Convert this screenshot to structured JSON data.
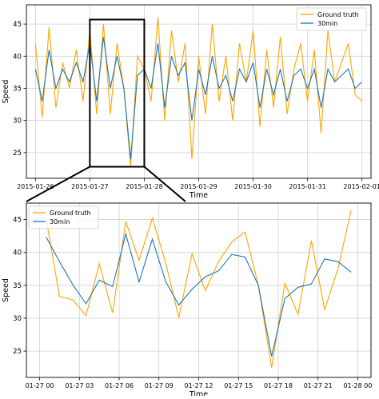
{
  "chart_data": [
    {
      "type": "line",
      "xlabel": "Time",
      "ylabel": "Speed",
      "xlim": [
        "2015-01-25 20:00",
        "2015-02-01 04:00"
      ],
      "ylim": [
        21,
        48
      ],
      "x_ticks": [
        "2015-01-26",
        "2015-01-27",
        "2015-01-28",
        "2015-01-29",
        "2015-01-30",
        "2015-01-31",
        "2015-02-01"
      ],
      "y_ticks": [
        25,
        30,
        35,
        40,
        45
      ],
      "grid": true,
      "legend": "top-right",
      "zoom_box": {
        "x": [
          "2015-01-27 00:00",
          "2015-01-28 00:00"
        ],
        "y": [
          22.8,
          45.7
        ]
      },
      "series": [
        {
          "name": "Ground truth",
          "color": "#FFA500",
          "x": [
            "2015-01-26 00:00",
            "2015-01-26 03:00",
            "2015-01-26 06:00",
            "2015-01-26 09:00",
            "2015-01-26 12:00",
            "2015-01-26 15:00",
            "2015-01-26 18:00",
            "2015-01-26 21:00",
            "2015-01-27 00:00",
            "2015-01-27 03:00",
            "2015-01-27 06:00",
            "2015-01-27 09:00",
            "2015-01-27 12:00",
            "2015-01-27 15:00",
            "2015-01-27 18:00",
            "2015-01-27 21:00",
            "2015-01-28 00:00",
            "2015-01-28 03:00",
            "2015-01-28 06:00",
            "2015-01-28 09:00",
            "2015-01-28 12:00",
            "2015-01-28 15:00",
            "2015-01-28 18:00",
            "2015-01-28 21:00",
            "2015-01-29 00:00",
            "2015-01-29 03:00",
            "2015-01-29 06:00",
            "2015-01-29 09:00",
            "2015-01-29 12:00",
            "2015-01-29 15:00",
            "2015-01-29 18:00",
            "2015-01-29 21:00",
            "2015-01-30 00:00",
            "2015-01-30 03:00",
            "2015-01-30 06:00",
            "2015-01-30 09:00",
            "2015-01-30 12:00",
            "2015-01-30 15:00",
            "2015-01-30 18:00",
            "2015-01-30 21:00",
            "2015-01-31 00:00",
            "2015-01-31 03:00",
            "2015-01-31 06:00",
            "2015-01-31 09:00",
            "2015-01-31 12:00",
            "2015-01-31 15:00",
            "2015-01-31 18:00",
            "2015-01-31 21:00",
            "2015-02-01 00:00"
          ],
          "y": [
            42,
            30.5,
            44.5,
            32,
            39,
            35,
            41,
            33,
            44,
            31,
            45,
            31,
            42,
            35,
            22.8,
            40,
            38,
            33,
            46,
            30,
            44,
            36,
            42,
            24,
            40,
            31,
            45,
            33,
            40,
            30,
            42,
            36,
            44,
            29,
            41,
            32,
            43,
            31,
            38,
            42,
            33,
            41,
            28,
            44,
            36,
            39,
            42,
            34,
            33
          ]
        },
        {
          "name": "30min",
          "color": "#1f77b4",
          "x": [
            "2015-01-26 00:00",
            "2015-01-26 03:00",
            "2015-01-26 06:00",
            "2015-01-26 09:00",
            "2015-01-26 12:00",
            "2015-01-26 15:00",
            "2015-01-26 18:00",
            "2015-01-26 21:00",
            "2015-01-27 00:00",
            "2015-01-27 03:00",
            "2015-01-27 06:00",
            "2015-01-27 09:00",
            "2015-01-27 12:00",
            "2015-01-27 15:00",
            "2015-01-27 18:00",
            "2015-01-27 21:00",
            "2015-01-28 00:00",
            "2015-01-28 03:00",
            "2015-01-28 06:00",
            "2015-01-28 09:00",
            "2015-01-28 12:00",
            "2015-01-28 15:00",
            "2015-01-28 18:00",
            "2015-01-28 21:00",
            "2015-01-29 00:00",
            "2015-01-29 03:00",
            "2015-01-29 06:00",
            "2015-01-29 09:00",
            "2015-01-29 12:00",
            "2015-01-29 15:00",
            "2015-01-29 18:00",
            "2015-01-29 21:00",
            "2015-01-30 00:00",
            "2015-01-30 03:00",
            "2015-01-30 06:00",
            "2015-01-30 09:00",
            "2015-01-30 12:00",
            "2015-01-30 15:00",
            "2015-01-30 18:00",
            "2015-01-30 21:00",
            "2015-01-31 00:00",
            "2015-01-31 03:00",
            "2015-01-31 06:00",
            "2015-01-31 09:00",
            "2015-01-31 12:00",
            "2015-01-31 15:00",
            "2015-01-31 18:00",
            "2015-01-31 21:00",
            "2015-02-01 00:00"
          ],
          "y": [
            38,
            33,
            41,
            35,
            38,
            36,
            39,
            36,
            42,
            33,
            43,
            35,
            40,
            35,
            24,
            37,
            38,
            35,
            42,
            32,
            40,
            37,
            39,
            30,
            38,
            34,
            40,
            35,
            37,
            33,
            38,
            36,
            39,
            32,
            38,
            34,
            38,
            33,
            37,
            38,
            35,
            38,
            32,
            38,
            36,
            37,
            38,
            35,
            36
          ]
        }
      ]
    },
    {
      "type": "line",
      "xlabel": "Time",
      "ylabel": "Speed",
      "xlim": [
        "2015-01-26 23:00",
        "2015-01-28 01:00"
      ],
      "ylim": [
        21,
        47.5
      ],
      "x_ticks": [
        "01-27 00",
        "01-27 03",
        "01-27 06",
        "01-27 09",
        "01-27 12",
        "01-27 15",
        "01-27 18",
        "01-27 21",
        "01-28 00"
      ],
      "y_ticks": [
        25,
        30,
        35,
        40,
        45
      ],
      "grid": true,
      "legend": "top-left",
      "series": [
        {
          "name": "Ground truth",
          "color": "#FFA500",
          "x": [
            0.5,
            1.5,
            2.5,
            3.5,
            4.5,
            5.5,
            6.5,
            7.5,
            8.5,
            9.5,
            10.5,
            11.5,
            12.5,
            13.5,
            14.5,
            15.5,
            16.5,
            17.5,
            18.5,
            19.5,
            20.5,
            21.5,
            22.5,
            23.5
          ],
          "y": [
            45,
            33.3,
            32.8,
            30.4,
            38.3,
            30.8,
            44.7,
            38.8,
            45.2,
            38.5,
            30.1,
            39.8,
            34.2,
            38.6,
            41.6,
            43.1,
            35,
            22.5,
            35.3,
            30.6,
            41.8,
            31.3,
            37.5,
            46.4
          ]
        },
        {
          "name": "30min",
          "color": "#1f77b4",
          "x": [
            0.5,
            1.5,
            2.5,
            3.5,
            4.5,
            5.5,
            6.5,
            7.5,
            8.5,
            9.5,
            10.5,
            11.5,
            12.5,
            13.5,
            14.5,
            15.5,
            16.5,
            17.5,
            18.5,
            19.5,
            20.5,
            21.5,
            22.5,
            23.5
          ],
          "y": [
            42.3,
            38.6,
            35.1,
            32.2,
            35.8,
            34.8,
            42.8,
            35.5,
            42,
            35.6,
            32,
            34.4,
            36.3,
            37.2,
            39.7,
            39.3,
            35,
            24.2,
            33,
            34.7,
            35.2,
            39,
            38.6,
            37
          ]
        }
      ]
    }
  ]
}
